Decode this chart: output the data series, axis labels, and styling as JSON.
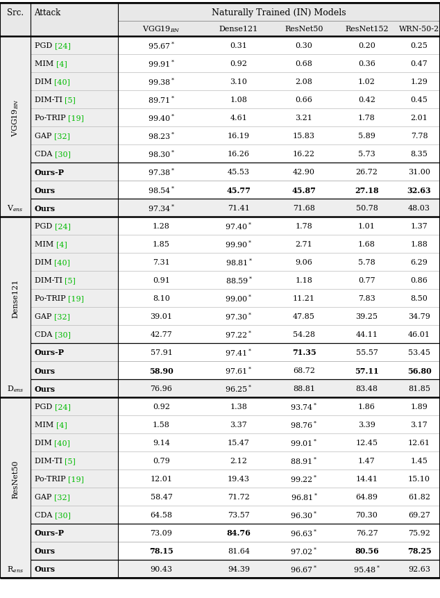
{
  "title": "Naturally Trained (IN) Models",
  "sections": [
    {
      "src_label": "VGG19$_{BN}$",
      "rows": [
        {
          "attack": "PGD ",
          "cite": "[24]",
          "values": [
            "95.67*",
            "0.31",
            "0.30",
            "0.20",
            "0.25"
          ],
          "bold_cols": [],
          "our_row": false
        },
        {
          "attack": "MIM ",
          "cite": "[4]",
          "values": [
            "99.91*",
            "0.92",
            "0.68",
            "0.36",
            "0.47"
          ],
          "bold_cols": [],
          "our_row": false
        },
        {
          "attack": "DIM ",
          "cite": "[40]",
          "values": [
            "99.38*",
            "3.10",
            "2.08",
            "1.02",
            "1.29"
          ],
          "bold_cols": [],
          "our_row": false
        },
        {
          "attack": "DIM-TI ",
          "cite": "[5]",
          "values": [
            "89.71*",
            "1.08",
            "0.66",
            "0.42",
            "0.45"
          ],
          "bold_cols": [],
          "our_row": false
        },
        {
          "attack": "Po-TRIP ",
          "cite": "[19]",
          "values": [
            "99.40*",
            "4.61",
            "3.21",
            "1.78",
            "2.01"
          ],
          "bold_cols": [],
          "our_row": false
        },
        {
          "attack": "GAP ",
          "cite": "[32]",
          "values": [
            "98.23*",
            "16.19",
            "15.83",
            "5.89",
            "7.78"
          ],
          "bold_cols": [],
          "our_row": false
        },
        {
          "attack": "CDA ",
          "cite": "[30]",
          "values": [
            "98.30*",
            "16.26",
            "16.22",
            "5.73",
            "8.35"
          ],
          "bold_cols": [],
          "our_row": false
        },
        {
          "attack": "Ours-P",
          "cite": "",
          "values": [
            "97.38*",
            "45.53",
            "42.90",
            "26.72",
            "31.00"
          ],
          "bold_cols": [],
          "our_row": true
        },
        {
          "attack": "Ours",
          "cite": "",
          "values": [
            "98.54*",
            "45.77",
            "45.87",
            "27.18",
            "32.63"
          ],
          "bold_cols": [
            1,
            2,
            3,
            4
          ],
          "our_row": true
        }
      ],
      "ens_label": "V$_{ens}$",
      "ens_values": [
        "97.34*",
        "71.41",
        "71.68",
        "50.78",
        "48.03"
      ]
    },
    {
      "src_label": "Dense121",
      "rows": [
        {
          "attack": "PGD ",
          "cite": "[24]",
          "values": [
            "1.28",
            "97.40*",
            "1.78",
            "1.01",
            "1.37"
          ],
          "bold_cols": [],
          "our_row": false
        },
        {
          "attack": "MIM ",
          "cite": "[4]",
          "values": [
            "1.85",
            "99.90*",
            "2.71",
            "1.68",
            "1.88"
          ],
          "bold_cols": [],
          "our_row": false
        },
        {
          "attack": "DIM ",
          "cite": "[40]",
          "values": [
            "7.31",
            "98.81*",
            "9.06",
            "5.78",
            "6.29"
          ],
          "bold_cols": [],
          "our_row": false
        },
        {
          "attack": "DIM-TI ",
          "cite": "[5]",
          "values": [
            "0.91",
            "88.59*",
            "1.18",
            "0.77",
            "0.86"
          ],
          "bold_cols": [],
          "our_row": false
        },
        {
          "attack": "Po-TRIP ",
          "cite": "[19]",
          "values": [
            "8.10",
            "99.00*",
            "11.21",
            "7.83",
            "8.50"
          ],
          "bold_cols": [],
          "our_row": false
        },
        {
          "attack": "GAP ",
          "cite": "[32]",
          "values": [
            "39.01",
            "97.30*",
            "47.85",
            "39.25",
            "34.79"
          ],
          "bold_cols": [],
          "our_row": false
        },
        {
          "attack": "CDA ",
          "cite": "[30]",
          "values": [
            "42.77",
            "97.22*",
            "54.28",
            "44.11",
            "46.01"
          ],
          "bold_cols": [],
          "our_row": false
        },
        {
          "attack": "Ours-P",
          "cite": "",
          "values": [
            "57.91",
            "97.41*",
            "71.35",
            "55.57",
            "53.45"
          ],
          "bold_cols": [
            2
          ],
          "our_row": true
        },
        {
          "attack": "Ours",
          "cite": "",
          "values": [
            "58.90",
            "97.61*",
            "68.72",
            "57.11",
            "56.80"
          ],
          "bold_cols": [
            0,
            3,
            4
          ],
          "our_row": true
        }
      ],
      "ens_label": "D$_{ens}$",
      "ens_values": [
        "76.96",
        "96.25*",
        "88.81",
        "83.48",
        "81.85"
      ]
    },
    {
      "src_label": "ResNet50",
      "rows": [
        {
          "attack": "PGD ",
          "cite": "[24]",
          "values": [
            "0.92",
            "1.38",
            "93.74*",
            "1.86",
            "1.89"
          ],
          "bold_cols": [],
          "our_row": false
        },
        {
          "attack": "MIM ",
          "cite": "[4]",
          "values": [
            "1.58",
            "3.37",
            "98.76*",
            "3.39",
            "3.17"
          ],
          "bold_cols": [],
          "our_row": false
        },
        {
          "attack": "DIM ",
          "cite": "[40]",
          "values": [
            "9.14",
            "15.47",
            "99.01*",
            "12.45",
            "12.61"
          ],
          "bold_cols": [],
          "our_row": false
        },
        {
          "attack": "DIM-TI ",
          "cite": "[5]",
          "values": [
            "0.79",
            "2.12",
            "88.91*",
            "1.47",
            "1.45"
          ],
          "bold_cols": [],
          "our_row": false
        },
        {
          "attack": "Po-TRIP ",
          "cite": "[19]",
          "values": [
            "12.01",
            "19.43",
            "99.22*",
            "14.41",
            "15.10"
          ],
          "bold_cols": [],
          "our_row": false
        },
        {
          "attack": "GAP ",
          "cite": "[32]",
          "values": [
            "58.47",
            "71.72",
            "96.81*",
            "64.89",
            "61.82"
          ],
          "bold_cols": [],
          "our_row": false
        },
        {
          "attack": "CDA ",
          "cite": "[30]",
          "values": [
            "64.58",
            "73.57",
            "96.30*",
            "70.30",
            "69.27"
          ],
          "bold_cols": [],
          "our_row": false
        },
        {
          "attack": "Ours-P",
          "cite": "",
          "values": [
            "73.09",
            "84.76",
            "96.63*",
            "76.27",
            "75.92"
          ],
          "bold_cols": [
            1
          ],
          "our_row": true
        },
        {
          "attack": "Ours",
          "cite": "",
          "values": [
            "78.15",
            "81.64",
            "97.02*",
            "80.56",
            "78.25"
          ],
          "bold_cols": [
            0,
            3,
            4
          ],
          "our_row": true
        }
      ],
      "ens_label": "R$_{ens}$",
      "ens_values": [
        "90.43",
        "94.39",
        "96.67*",
        "95.48*",
        "92.63"
      ]
    }
  ],
  "col_headers": [
    "VGG19$_{BN}$",
    "Dense121",
    "ResNet50",
    "ResNet152",
    "WRN-50-2"
  ],
  "green_color": "#00bb00"
}
